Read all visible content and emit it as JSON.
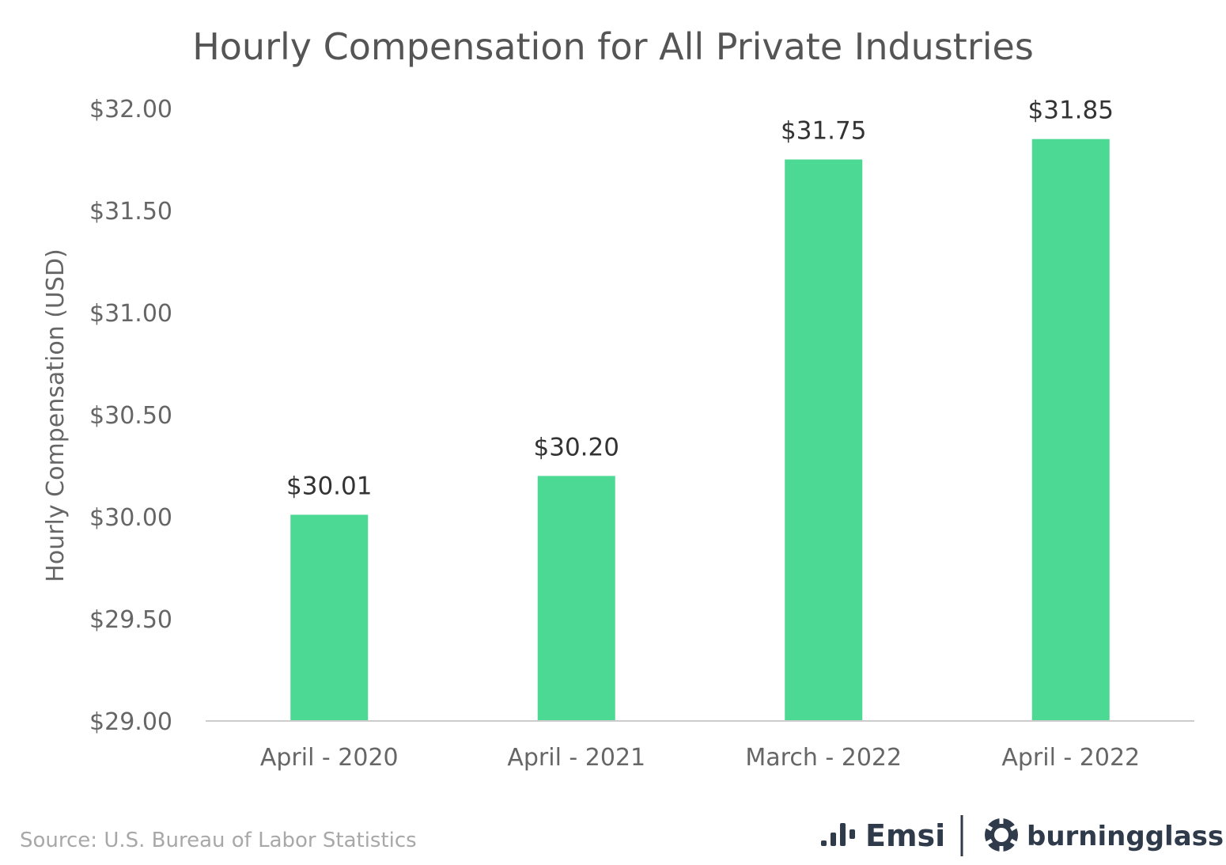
{
  "chart_data": {
    "type": "bar",
    "title": "Hourly Compensation for All Private Industries",
    "ylabel": "Hourly Compensation (USD)",
    "xlabel": "",
    "categories": [
      "April - 2020",
      "April - 2021",
      "March - 2022",
      "April - 2022"
    ],
    "values": [
      30.01,
      30.2,
      31.75,
      31.85
    ],
    "value_labels": [
      "$30.01",
      "$30.20",
      "$31.75",
      "$31.85"
    ],
    "ylim": [
      29.0,
      32.0
    ],
    "yticks": [
      "$29.00",
      "$29.50",
      "$30.00",
      "$30.50",
      "$31.00",
      "$31.50",
      "$32.00"
    ],
    "grid": false,
    "bar_color": "#4cd993"
  },
  "source": "Source:  U.S. Bureau of Labor Statistics",
  "logos": {
    "emsi": "Emsi",
    "burningglass": "burningglass",
    "emsi_icon": "bars-icon",
    "burningglass_icon": "starburst-icon"
  },
  "colors": {
    "axis": "#cccccc",
    "logo": "#2f3a4a"
  }
}
